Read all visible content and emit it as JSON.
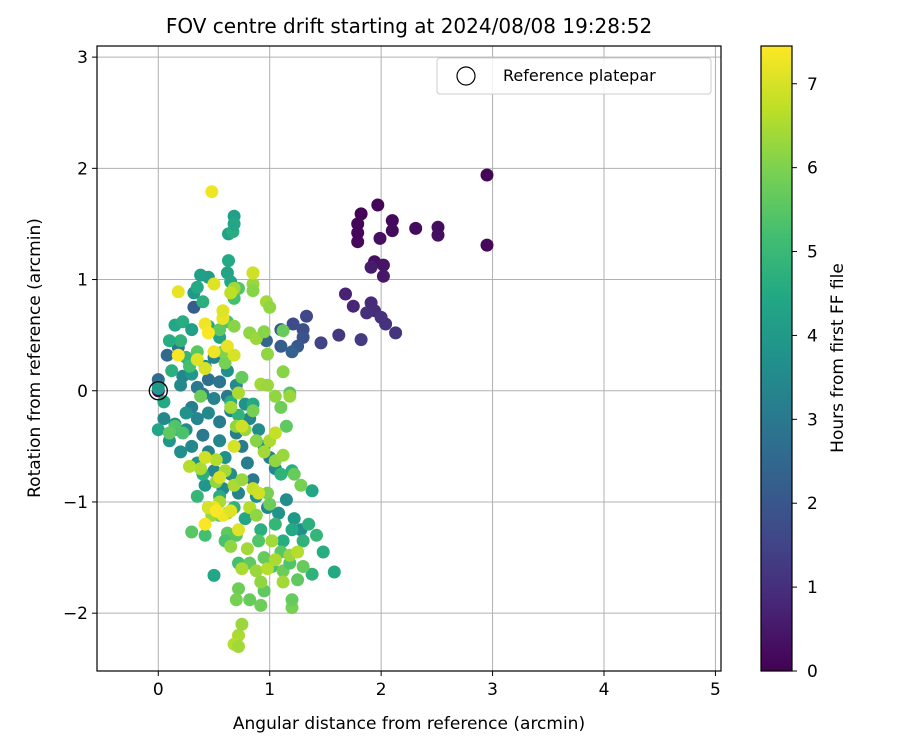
{
  "chart_data": {
    "type": "scatter",
    "title": "FOV centre drift starting at 2024/08/08 19:28:52",
    "xlabel": "Angular distance from reference (arcmin)",
    "ylabel": "Rotation from reference (arcmin)",
    "xlim": [
      -0.55,
      5.05
    ],
    "ylim": [
      -2.52,
      3.1
    ],
    "xticks": [
      0,
      1,
      2,
      3,
      4,
      5
    ],
    "yticks": [
      -2,
      -1,
      0,
      1,
      2,
      3
    ],
    "xtick_labels": [
      "0",
      "1",
      "2",
      "3",
      "4",
      "5"
    ],
    "ytick_labels": [
      "−2",
      "−1",
      "0",
      "1",
      "2",
      "3"
    ],
    "grid": true,
    "colormap": "viridis",
    "colorbar": {
      "label": "Hours from first FF file",
      "range": [
        0,
        7.45
      ],
      "ticks": [
        0,
        1,
        2,
        3,
        4,
        5,
        6,
        7
      ],
      "tick_labels": [
        "0",
        "1",
        "2",
        "3",
        "4",
        "5",
        "6",
        "7"
      ]
    },
    "legend": {
      "location": "upper right",
      "entries": [
        "Reference platepar"
      ]
    },
    "reference_point": {
      "x": 0,
      "y": 0
    },
    "points": [
      [
        0.0,
        0.0,
        0.0
      ],
      [
        1.82,
        1.59,
        0.05
      ],
      [
        1.97,
        1.67,
        0.08
      ],
      [
        1.79,
        1.5,
        0.1
      ],
      [
        1.79,
        1.42,
        0.12
      ],
      [
        1.79,
        1.34,
        0.14
      ],
      [
        2.1,
        1.53,
        0.17
      ],
      [
        2.1,
        1.44,
        0.2
      ],
      [
        2.31,
        1.46,
        0.22
      ],
      [
        2.51,
        1.47,
        0.25
      ],
      [
        2.51,
        1.4,
        0.27
      ],
      [
        2.95,
        1.94,
        0.1
      ],
      [
        2.95,
        1.31,
        0.15
      ],
      [
        1.99,
        1.37,
        0.3
      ],
      [
        1.94,
        1.16,
        0.35
      ],
      [
        2.02,
        1.13,
        0.42
      ],
      [
        2.02,
        1.03,
        0.5
      ],
      [
        1.91,
        1.11,
        0.55
      ],
      [
        1.68,
        0.87,
        0.7
      ],
      [
        1.75,
        0.76,
        0.8
      ],
      [
        1.91,
        0.79,
        0.9
      ],
      [
        1.94,
        0.72,
        0.95
      ],
      [
        1.87,
        0.7,
        1.0
      ],
      [
        2.0,
        0.66,
        1.05
      ],
      [
        2.04,
        0.6,
        1.1
      ],
      [
        2.13,
        0.52,
        1.15
      ],
      [
        1.62,
        0.5,
        1.2
      ],
      [
        1.82,
        0.46,
        1.3
      ],
      [
        1.46,
        0.43,
        1.5
      ],
      [
        1.33,
        0.67,
        1.6
      ],
      [
        1.3,
        0.55,
        1.8
      ],
      [
        1.21,
        0.6,
        1.7
      ],
      [
        1.3,
        0.48,
        1.9
      ],
      [
        1.1,
        0.55,
        2.0
      ],
      [
        1.25,
        0.4,
        2.1
      ],
      [
        1.1,
        0.4,
        2.2
      ],
      [
        1.2,
        0.35,
        2.3
      ],
      [
        0.97,
        0.45,
        2.4
      ],
      [
        0.32,
        0.75,
        2.2
      ],
      [
        0.0,
        0.1,
        2.6
      ],
      [
        0.0,
        0.05,
        2.8
      ],
      [
        0.08,
        0.32,
        2.5
      ],
      [
        0.18,
        0.39,
        2.9
      ],
      [
        0.28,
        0.26,
        3.2
      ],
      [
        0.22,
        0.13,
        3.4
      ],
      [
        0.2,
        0.05,
        3.5
      ],
      [
        0.35,
        0.03,
        3.0
      ],
      [
        0.45,
        0.1,
        2.7
      ],
      [
        0.55,
        0.08,
        2.9
      ],
      [
        0.4,
        -0.03,
        3.1
      ],
      [
        0.5,
        -0.07,
        3.3
      ],
      [
        0.62,
        -0.05,
        3.0
      ],
      [
        0.3,
        -0.15,
        3.2
      ],
      [
        0.35,
        -0.25,
        3.4
      ],
      [
        0.45,
        -0.2,
        3.5
      ],
      [
        0.55,
        -0.28,
        3.1
      ],
      [
        0.65,
        -0.18,
        3.3
      ],
      [
        0.25,
        -0.35,
        3.6
      ],
      [
        0.4,
        -0.4,
        3.0
      ],
      [
        0.55,
        -0.45,
        3.4
      ],
      [
        0.7,
        -0.38,
        3.2
      ],
      [
        0.3,
        -0.5,
        3.5
      ],
      [
        0.45,
        -0.55,
        3.3
      ],
      [
        0.6,
        -0.6,
        3.7
      ],
      [
        0.75,
        -0.5,
        3.1
      ],
      [
        0.35,
        -0.65,
        3.8
      ],
      [
        0.5,
        -0.72,
        3.4
      ],
      [
        0.65,
        -0.75,
        3.6
      ],
      [
        0.8,
        -0.65,
        3.2
      ],
      [
        0.42,
        -0.85,
        3.9
      ],
      [
        0.58,
        -0.88,
        3.5
      ],
      [
        0.72,
        -0.92,
        3.3
      ],
      [
        0.85,
        -0.8,
        3.0
      ],
      [
        0.25,
        -0.2,
        3.8
      ],
      [
        0.15,
        -0.3,
        3.6
      ],
      [
        0.1,
        -0.45,
        3.9
      ],
      [
        0.2,
        -0.55,
        3.7
      ],
      [
        0.05,
        -0.25,
        3.5
      ],
      [
        0.3,
        0.15,
        3.9
      ],
      [
        0.42,
        0.22,
        3.6
      ],
      [
        0.5,
        0.3,
        3.3
      ],
      [
        0.62,
        0.18,
        3.7
      ],
      [
        0.7,
        0.05,
        3.5
      ],
      [
        0.78,
        -0.12,
        3.8
      ],
      [
        0.82,
        -0.25,
        3.4
      ],
      [
        0.9,
        -0.35,
        3.6
      ],
      [
        0.95,
        -0.5,
        3.9
      ],
      [
        1.0,
        -0.6,
        3.2
      ],
      [
        1.05,
        -0.7,
        3.5
      ],
      [
        0.88,
        -0.95,
        3.7
      ],
      [
        0.98,
        -1.05,
        3.4
      ],
      [
        1.08,
        -1.1,
        3.8
      ],
      [
        1.15,
        -0.98,
        3.6
      ],
      [
        1.22,
        -1.15,
        4.0
      ],
      [
        1.28,
        -1.25,
        3.7
      ],
      [
        0.32,
        0.88,
        4.0
      ],
      [
        0.38,
        1.04,
        4.2
      ],
      [
        0.45,
        1.02,
        4.1
      ],
      [
        0.62,
        1.06,
        4.3
      ],
      [
        0.65,
        0.98,
        4.4
      ],
      [
        0.63,
        1.17,
        4.5
      ],
      [
        0.63,
        1.41,
        4.3
      ],
      [
        0.67,
        1.43,
        4.6
      ],
      [
        0.68,
        1.57,
        4.2
      ],
      [
        0.68,
        1.5,
        4.4
      ],
      [
        0.35,
        0.93,
        4.5
      ],
      [
        0.4,
        0.8,
        4.7
      ],
      [
        0.15,
        0.59,
        4.4
      ],
      [
        0.22,
        0.62,
        4.6
      ],
      [
        0.3,
        0.55,
        4.2
      ],
      [
        0.45,
        0.58,
        4.5
      ],
      [
        0.55,
        0.48,
        4.3
      ],
      [
        0.2,
        0.45,
        4.8
      ],
      [
        0.1,
        0.45,
        4.6
      ],
      [
        0.25,
        0.3,
        4.9
      ],
      [
        0.12,
        0.18,
        4.7
      ],
      [
        0.05,
        -0.1,
        4.5
      ],
      [
        0.15,
        -0.35,
        4.8
      ],
      [
        0.0,
        -0.35,
        4.4
      ],
      [
        0.65,
        -0.1,
        4.6
      ],
      [
        0.72,
        -0.22,
        4.8
      ],
      [
        0.85,
        -0.12,
        4.5
      ],
      [
        0.4,
        -0.75,
        4.7
      ],
      [
        0.35,
        -0.95,
        4.9
      ],
      [
        0.45,
        -1.05,
        4.5
      ],
      [
        0.5,
        -1.66,
        4.4
      ],
      [
        0.55,
        -0.95,
        4.6
      ],
      [
        0.68,
        -1.05,
        4.8
      ],
      [
        0.78,
        -1.15,
        4.4
      ],
      [
        0.92,
        -1.25,
        4.7
      ],
      [
        1.05,
        -1.2,
        4.9
      ],
      [
        1.12,
        -1.35,
        4.6
      ],
      [
        1.2,
        -1.25,
        4.5
      ],
      [
        1.3,
        -1.35,
        4.8
      ],
      [
        1.35,
        -1.2,
        4.7
      ],
      [
        1.42,
        -1.3,
        4.9
      ],
      [
        1.48,
        -1.45,
        4.6
      ],
      [
        1.58,
        -1.63,
        4.5
      ],
      [
        1.38,
        -1.65,
        4.8
      ],
      [
        1.38,
        -0.9,
        4.4
      ],
      [
        1.2,
        -0.72,
        4.6
      ],
      [
        1.1,
        -0.75,
        4.8
      ],
      [
        0.0,
        0.02,
        4.0
      ],
      [
        0.68,
        0.83,
        5.2
      ],
      [
        0.72,
        0.92,
        5.4
      ],
      [
        0.62,
        0.62,
        5.3
      ],
      [
        0.55,
        0.55,
        5.6
      ],
      [
        0.35,
        0.35,
        5.5
      ],
      [
        0.28,
        0.22,
        5.2
      ],
      [
        0.15,
        -0.32,
        5.4
      ],
      [
        0.1,
        -0.38,
        5.6
      ],
      [
        0.22,
        -0.38,
        5.3
      ],
      [
        0.3,
        -1.27,
        5.5
      ],
      [
        0.42,
        -1.3,
        5.2
      ],
      [
        0.55,
        -1.12,
        5.4
      ],
      [
        0.62,
        -1.28,
        5.6
      ],
      [
        0.6,
        -1.35,
        5.3
      ],
      [
        0.7,
        -1.3,
        5.5
      ],
      [
        0.72,
        -1.55,
        5.2
      ],
      [
        0.82,
        -1.55,
        5.6
      ],
      [
        0.9,
        -1.35,
        5.4
      ],
      [
        0.95,
        -1.5,
        5.7
      ],
      [
        1.02,
        -1.58,
        5.3
      ],
      [
        1.1,
        -1.45,
        5.5
      ],
      [
        1.12,
        -1.62,
        5.8
      ],
      [
        1.18,
        -1.55,
        5.4
      ],
      [
        1.25,
        -1.7,
        5.6
      ],
      [
        1.3,
        -1.58,
        5.7
      ],
      [
        0.38,
        -0.05,
        5.8
      ],
      [
        0.6,
        0.25,
        5.9
      ],
      [
        0.75,
        0.12,
        5.7
      ],
      [
        0.85,
        -0.18,
        5.9
      ],
      [
        1.1,
        -0.15,
        5.8
      ],
      [
        1.15,
        -0.32,
        5.6
      ],
      [
        0.98,
        -0.92,
        5.9
      ],
      [
        1.0,
        -1.02,
        5.8
      ],
      [
        1.22,
        -0.75,
        5.7
      ],
      [
        1.28,
        -0.85,
        5.9
      ],
      [
        1.18,
        -0.02,
        5.5
      ],
      [
        1.12,
        0.54,
        5.7
      ],
      [
        0.72,
        -1.78,
        5.8
      ],
      [
        0.7,
        -1.88,
        5.9
      ],
      [
        0.82,
        -1.88,
        5.7
      ],
      [
        0.92,
        -1.93,
        5.8
      ],
      [
        0.95,
        -1.8,
        5.6
      ],
      [
        1.2,
        -1.95,
        5.9
      ],
      [
        1.2,
        -1.88,
        5.7
      ],
      [
        0.58,
        0.35,
        6.0
      ],
      [
        0.68,
        0.58,
        6.1
      ],
      [
        0.82,
        0.52,
        6.2
      ],
      [
        0.88,
        0.47,
        6.3
      ],
      [
        0.95,
        0.53,
        6.1
      ],
      [
        0.97,
        0.8,
        6.4
      ],
      [
        1.0,
        0.75,
        6.2
      ],
      [
        0.85,
        0.96,
        6.3
      ],
      [
        0.85,
        0.9,
        6.1
      ],
      [
        0.68,
        0.92,
        6.4
      ],
      [
        0.98,
        0.33,
        6.2
      ],
      [
        0.92,
        0.06,
        6.4
      ],
      [
        0.98,
        0.05,
        6.3
      ],
      [
        1.12,
        0.17,
        6.1
      ],
      [
        1.05,
        -0.05,
        6.2
      ],
      [
        1.18,
        -0.05,
        6.3
      ],
      [
        0.72,
        -0.02,
        6.5
      ],
      [
        0.65,
        -0.15,
        6.4
      ],
      [
        0.7,
        -0.32,
        6.2
      ],
      [
        0.78,
        -0.35,
        6.3
      ],
      [
        0.88,
        -0.45,
        6.1
      ],
      [
        0.95,
        -0.55,
        6.4
      ],
      [
        1.0,
        -0.45,
        6.5
      ],
      [
        1.05,
        -0.63,
        6.2
      ],
      [
        1.12,
        -0.58,
        6.3
      ],
      [
        0.52,
        -0.62,
        6.6
      ],
      [
        0.6,
        -0.72,
        6.4
      ],
      [
        0.68,
        -0.85,
        6.5
      ],
      [
        0.75,
        -0.8,
        6.3
      ],
      [
        0.52,
        -0.82,
        6.2
      ],
      [
        0.55,
        -1.0,
        6.5
      ],
      [
        0.62,
        -1.1,
        6.4
      ],
      [
        0.48,
        -1.12,
        6.3
      ],
      [
        0.82,
        -1.05,
        6.6
      ],
      [
        0.88,
        -1.12,
        6.2
      ],
      [
        0.8,
        -1.42,
        6.4
      ],
      [
        0.75,
        -1.6,
        6.5
      ],
      [
        0.88,
        -1.62,
        6.3
      ],
      [
        0.92,
        -1.72,
        6.2
      ],
      [
        0.98,
        -1.6,
        6.6
      ],
      [
        1.05,
        -1.52,
        6.5
      ],
      [
        1.12,
        -1.72,
        6.4
      ],
      [
        1.18,
        -1.48,
        6.3
      ],
      [
        1.25,
        -1.45,
        6.6
      ],
      [
        1.02,
        -1.35,
        6.4
      ],
      [
        0.72,
        -2.2,
        6.5
      ],
      [
        0.75,
        -2.1,
        6.3
      ],
      [
        0.68,
        -2.28,
        6.6
      ],
      [
        0.72,
        -2.3,
        6.4
      ],
      [
        0.38,
        -0.7,
        6.5
      ],
      [
        0.28,
        -0.68,
        6.6
      ],
      [
        0.65,
        -1.4,
        6.2
      ],
      [
        0.65,
        0.88,
        6.7
      ],
      [
        0.85,
        1.06,
        7.0
      ],
      [
        0.85,
        1.06,
        6.9
      ],
      [
        0.5,
        0.96,
        7.1
      ],
      [
        0.48,
        1.79,
        7.3
      ],
      [
        0.18,
        0.89,
        7.2
      ],
      [
        0.58,
        0.65,
        7.2
      ],
      [
        0.58,
        0.72,
        7.1
      ],
      [
        0.42,
        0.6,
        7.3
      ],
      [
        0.45,
        0.52,
        7.4
      ],
      [
        0.5,
        0.35,
        7.3
      ],
      [
        0.62,
        0.4,
        7.2
      ],
      [
        0.68,
        0.32,
        7.0
      ],
      [
        0.18,
        0.32,
        7.4
      ],
      [
        0.35,
        0.28,
        7.1
      ],
      [
        0.42,
        0.2,
        7.0
      ],
      [
        0.75,
        -0.32,
        6.9
      ],
      [
        1.05,
        -0.38,
        6.8
      ],
      [
        0.68,
        -0.5,
        7.0
      ],
      [
        0.85,
        -0.88,
        6.8
      ],
      [
        0.9,
        -0.92,
        6.9
      ],
      [
        0.5,
        -1.05,
        7.2
      ],
      [
        0.58,
        -1.12,
        7.3
      ],
      [
        0.65,
        -1.08,
        7.1
      ],
      [
        0.42,
        -1.2,
        7.4
      ],
      [
        0.45,
        -1.05,
        7.0
      ],
      [
        0.72,
        -1.25,
        7.1
      ],
      [
        0.55,
        -0.78,
        7.0
      ],
      [
        0.42,
        -0.6,
        6.9
      ],
      [
        0.52,
        -1.08,
        7.4
      ]
    ]
  }
}
